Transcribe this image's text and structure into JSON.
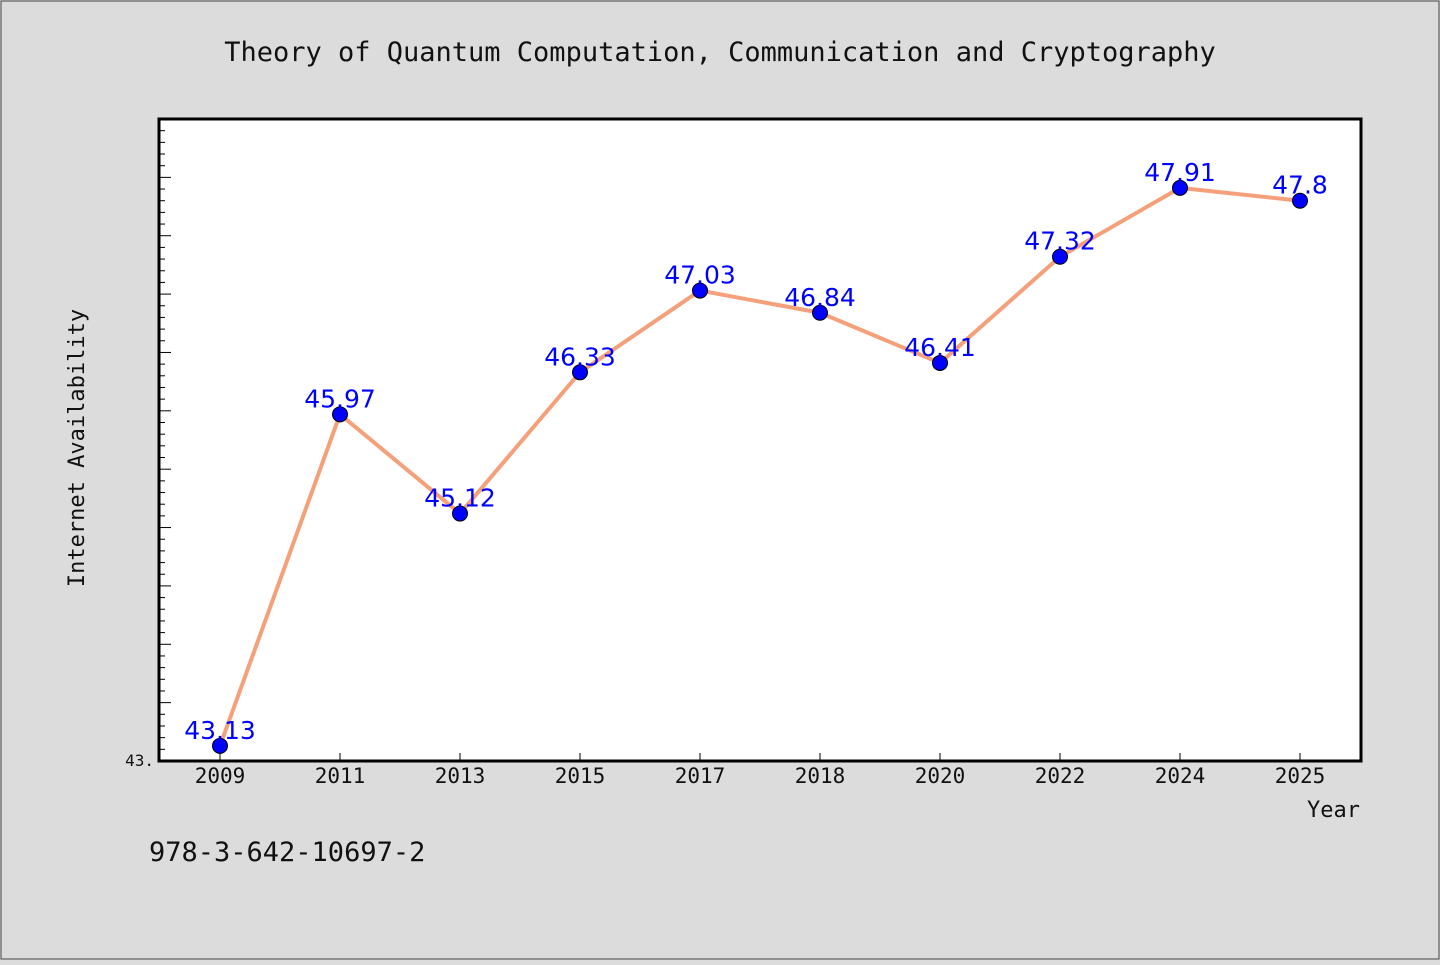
{
  "chart_data": {
    "type": "line",
    "title": "Theory of Quantum Computation, Communication and Cryptography",
    "xlabel": "Year",
    "ylabel": "Internet Availability",
    "y_axis_min_label": "43.",
    "categories": [
      "2009",
      "2011",
      "2013",
      "2015",
      "2017",
      "2018",
      "2020",
      "2022",
      "2024",
      "2025"
    ],
    "series": [
      {
        "values": [
          43.13,
          45.97,
          45.12,
          46.33,
          47.03,
          46.84,
          46.41,
          47.32,
          47.91,
          47.8
        ],
        "labels": [
          "43.13",
          "45.97",
          "45.12",
          "46.33",
          "47.03",
          "46.84",
          "46.41",
          "47.32",
          "47.91",
          "47.8"
        ]
      }
    ],
    "ylim": [
      43.0,
      48.5
    ],
    "grid": false,
    "colors": {
      "line": "#f4a07a",
      "marker": "#0000ff",
      "label": "#0000ff",
      "background": "#dcdcdc",
      "plot_background": "#ffffff"
    }
  },
  "footer_text": "978-3-642-10697-2"
}
